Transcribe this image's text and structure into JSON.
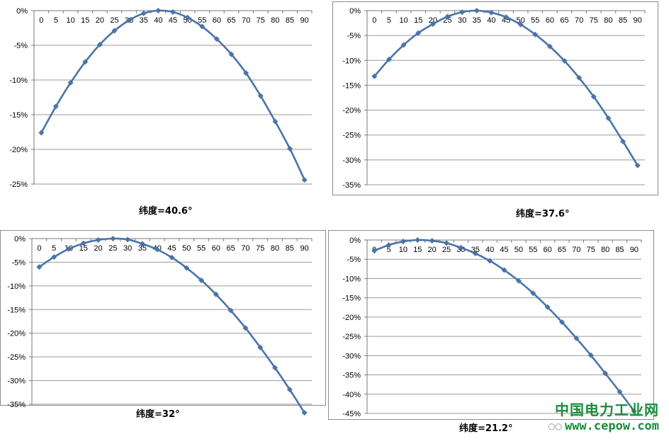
{
  "chart_data": [
    {
      "type": "line",
      "title": "纬度=40.6°",
      "x": [
        0,
        5,
        10,
        15,
        20,
        25,
        30,
        35,
        40,
        45,
        50,
        55,
        60,
        65,
        70,
        75,
        80,
        85,
        90
      ],
      "values": [
        -17.6,
        -13.8,
        -10.4,
        -7.4,
        -4.9,
        -2.9,
        -1.4,
        -0.4,
        0,
        -0.2,
        -1.0,
        -2.3,
        -4.1,
        -6.3,
        -9.0,
        -12.3,
        -16.0,
        -19.9,
        -24.4
      ],
      "ylim": [
        -25,
        0
      ],
      "yticks": [
        "0%",
        "-5%",
        "-10%",
        "-15%",
        "-20%",
        "-25%"
      ],
      "xticks": [
        "0",
        "5",
        "10",
        "15",
        "20",
        "25",
        "30",
        "35",
        "40",
        "45",
        "50",
        "55",
        "60",
        "65",
        "70",
        "75",
        "80",
        "85",
        "90"
      ],
      "grid": true,
      "color": "#4a74a8"
    },
    {
      "type": "line",
      "title": "纬度=37.6°",
      "x": [
        0,
        5,
        10,
        15,
        20,
        25,
        30,
        35,
        40,
        45,
        50,
        55,
        60,
        65,
        70,
        75,
        80,
        85,
        90
      ],
      "values": [
        -13.2,
        -9.8,
        -6.9,
        -4.5,
        -2.7,
        -1.2,
        -0.3,
        0,
        -0.4,
        -1.3,
        -2.8,
        -4.8,
        -7.2,
        -10.1,
        -13.5,
        -17.3,
        -21.6,
        -26.3,
        -31.1
      ],
      "ylim": [
        -35,
        0
      ],
      "yticks": [
        "0%",
        "-5%",
        "-10%",
        "-15%",
        "-20%",
        "-25%",
        "-30%",
        "-35%"
      ],
      "xticks": [
        "0",
        "5",
        "10",
        "15",
        "20",
        "25",
        "30",
        "35",
        "40",
        "45",
        "50",
        "55",
        "60",
        "65",
        "70",
        "75",
        "80",
        "85",
        "90"
      ],
      "grid": true,
      "color": "#4a74a8"
    },
    {
      "type": "line",
      "title": "纬度=32°",
      "x": [
        0,
        5,
        10,
        15,
        20,
        25,
        30,
        35,
        40,
        45,
        50,
        55,
        60,
        65,
        70,
        75,
        80,
        85,
        90
      ],
      "values": [
        -6.0,
        -3.9,
        -2.2,
        -1.0,
        -0.3,
        0,
        -0.2,
        -1.1,
        -2.3,
        -4.0,
        -6.2,
        -8.8,
        -11.8,
        -15.2,
        -18.9,
        -23.0,
        -27.3,
        -31.9,
        -36.8
      ],
      "ylim": [
        -35,
        0
      ],
      "yticks": [
        "0%",
        "-5%",
        "-10%",
        "-15%",
        "-20%",
        "-25%",
        "-30%",
        "-35%"
      ],
      "xticks": [
        "0",
        "5",
        "10",
        "15",
        "20",
        "25",
        "30",
        "35",
        "40",
        "45",
        "50",
        "55",
        "60",
        "65",
        "70",
        "75",
        "80",
        "85",
        "90"
      ],
      "grid": true,
      "color": "#4a74a8"
    },
    {
      "type": "line",
      "title": "纬度=21.2°",
      "x": [
        0,
        5,
        10,
        15,
        20,
        25,
        30,
        35,
        40,
        45,
        50,
        55,
        60,
        65,
        70,
        75,
        80,
        85,
        90
      ],
      "values": [
        -2.8,
        -1.3,
        -0.4,
        0,
        -0.2,
        -0.8,
        -2.0,
        -3.5,
        -5.4,
        -7.8,
        -10.6,
        -13.8,
        -17.4,
        -21.3,
        -25.5,
        -29.9,
        -34.6,
        -39.4,
        -44.4
      ],
      "ylim": [
        -45,
        0
      ],
      "yticks": [
        "0%",
        "-5%",
        "-10%",
        "-15%",
        "-20%",
        "-25%",
        "-30%",
        "-35%",
        "-40%",
        "-45%"
      ],
      "xticks": [
        "0",
        "5",
        "10",
        "15",
        "20",
        "25",
        "30",
        "35",
        "40",
        "45",
        "50",
        "55",
        "60",
        "65",
        "70",
        "75",
        "80",
        "85",
        "90"
      ],
      "grid": true,
      "color": "#4a74a8"
    }
  ],
  "watermark": {
    "title": "中国电力工业网",
    "url": "www.cepow.com",
    "icon": "wechat-icon"
  }
}
